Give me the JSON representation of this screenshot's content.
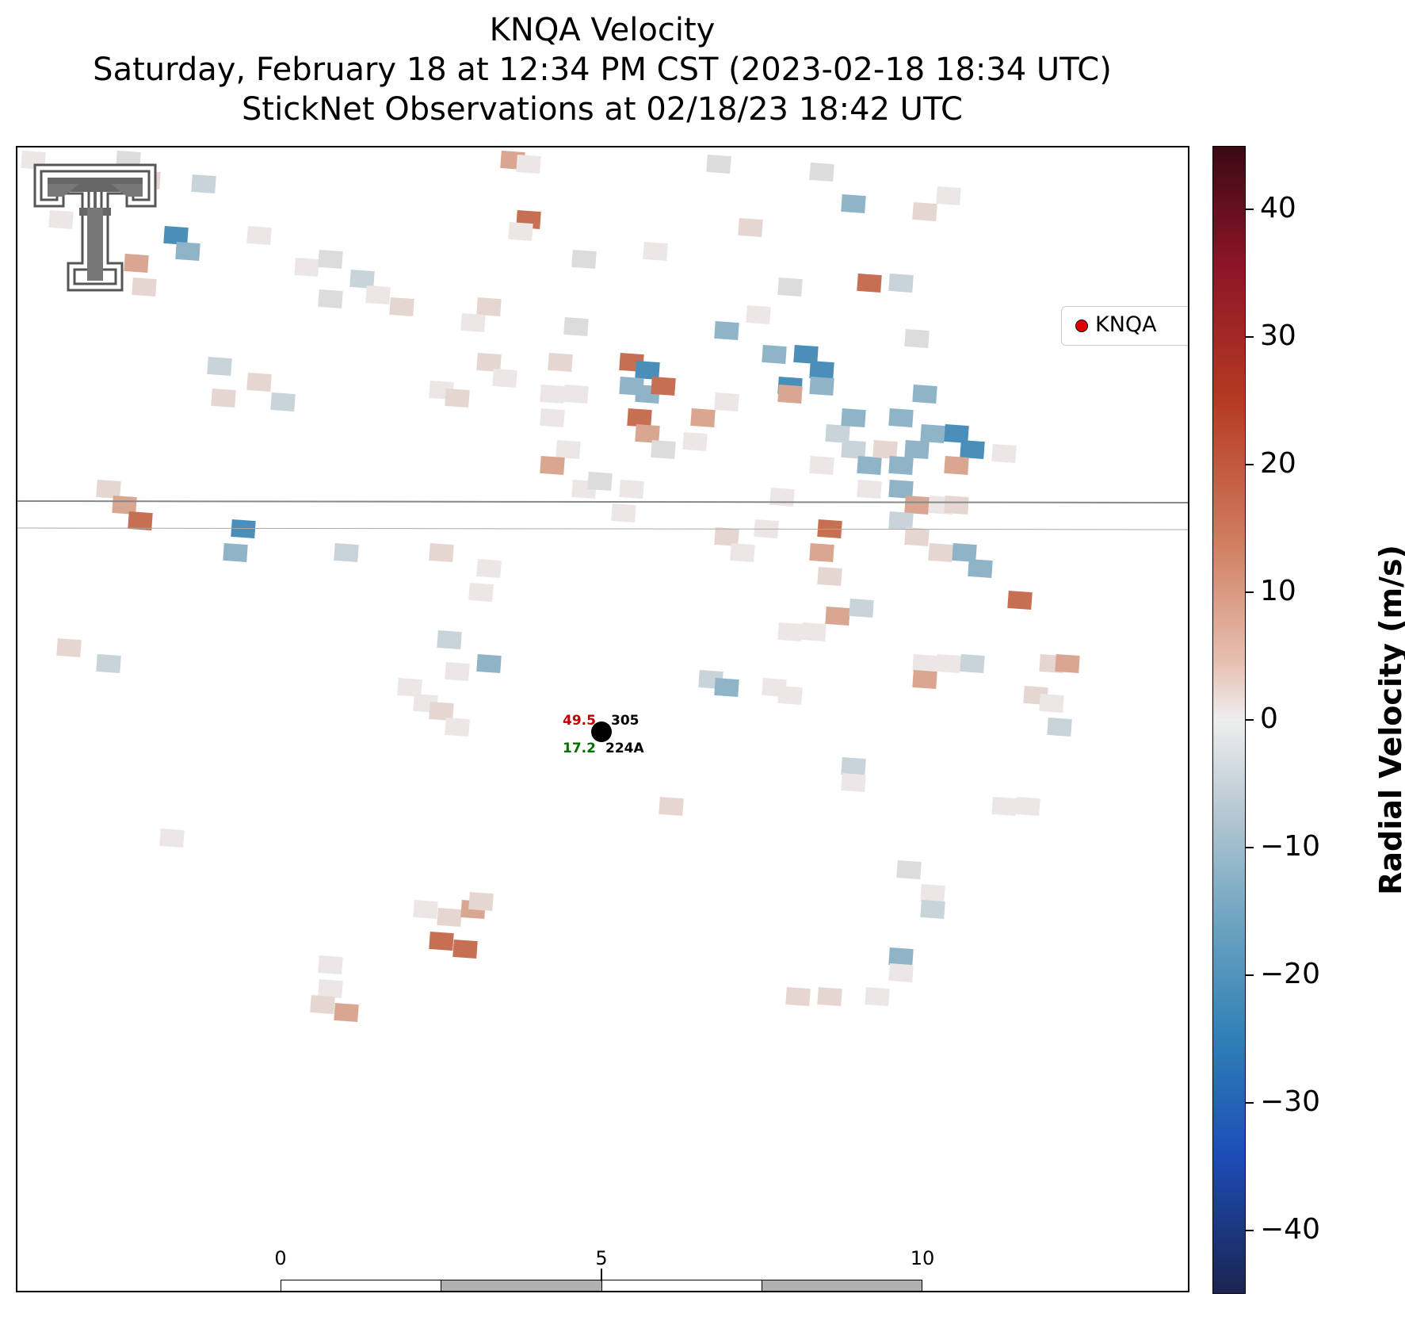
{
  "header": {
    "title": "KNQA Velocity",
    "subtitle1": "Saturday, February 18 at 12:34 PM CST (2023-02-18 18:34 UTC)",
    "subtitle2": "StickNet Observations at 02/18/23 18:42 UTC"
  },
  "legend": {
    "label": "KNQA",
    "marker_color": "#e00000"
  },
  "colorbar": {
    "title": "Radial Velocity (m/s)",
    "range": [
      -45,
      45
    ],
    "ticks": [
      "40",
      "30",
      "20",
      "10",
      "0",
      "−10",
      "−20",
      "−30",
      "−40"
    ]
  },
  "station": {
    "id": "224A",
    "temperature": "49.5",
    "dewpoint": "17.2",
    "pressure": "305",
    "temperature_color": "#c00000",
    "dewpoint_color": "#007000"
  },
  "scalebar": {
    "unit": "km",
    "labels": [
      "0",
      "5",
      "10"
    ]
  },
  "logo": {
    "name": "texas-tech-double-t-logo"
  }
}
